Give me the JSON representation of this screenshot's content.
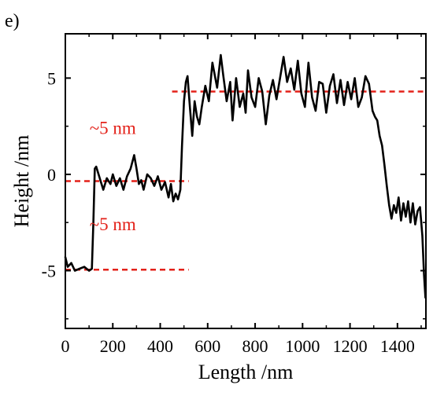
{
  "panel_label": "e)",
  "colors": {
    "profile": "#000000",
    "annotation": "#e32119"
  },
  "chart_data": {
    "type": "line",
    "title": "",
    "xlabel": "Length /nm",
    "ylabel": "Height /nm",
    "xlim": [
      0,
      1520
    ],
    "ylim": [
      -8,
      7.3
    ],
    "x_ticks": [
      0,
      200,
      400,
      600,
      800,
      1000,
      1200,
      1400
    ],
    "y_ticks": [
      -5,
      0,
      5
    ],
    "x_tick_labels": [
      "0",
      "200",
      "400",
      "600",
      "800",
      "1000",
      "1200",
      "1400"
    ],
    "y_tick_labels": [
      "-5",
      "0",
      "5"
    ],
    "grid": false,
    "series": [
      {
        "x": [
          0,
          10,
          25,
          40,
          60,
          80,
          100,
          112,
          118,
          124,
          130,
          140,
          150,
          160,
          175,
          190,
          200,
          215,
          230,
          245,
          260,
          275,
          290,
          300,
          310,
          320,
          330,
          345,
          360,
          375,
          390,
          405,
          420,
          435,
          445,
          455,
          465,
          475,
          485,
          492,
          500,
          508,
          515,
          525,
          535,
          545,
          555,
          565,
          575,
          590,
          605,
          620,
          640,
          655,
          665,
          680,
          695,
          705,
          720,
          735,
          750,
          760,
          770,
          785,
          800,
          815,
          830,
          845,
          860,
          875,
          890,
          905,
          920,
          935,
          950,
          965,
          980,
          995,
          1010,
          1025,
          1040,
          1055,
          1070,
          1085,
          1100,
          1115,
          1130,
          1145,
          1160,
          1175,
          1190,
          1205,
          1220,
          1235,
          1250,
          1265,
          1280,
          1295,
          1305,
          1315,
          1325,
          1335,
          1345,
          1355,
          1365,
          1375,
          1385,
          1395,
          1405,
          1415,
          1425,
          1435,
          1445,
          1455,
          1465,
          1475,
          1485,
          1495,
          1505,
          1512,
          1518
        ],
        "y": [
          -4.3,
          -4.8,
          -4.6,
          -5.0,
          -4.9,
          -4.8,
          -5.0,
          -4.9,
          -2.5,
          0.3,
          0.4,
          0.0,
          -0.4,
          -0.8,
          -0.2,
          -0.5,
          0.0,
          -0.6,
          -0.2,
          -0.8,
          -0.1,
          0.3,
          1.0,
          0.3,
          -0.5,
          -0.3,
          -0.8,
          0.0,
          -0.2,
          -0.6,
          -0.1,
          -0.8,
          -0.4,
          -1.2,
          -0.5,
          -1.4,
          -1.0,
          -1.3,
          -0.8,
          1.5,
          3.8,
          4.8,
          5.1,
          3.5,
          2.0,
          3.8,
          3.0,
          2.6,
          3.5,
          4.6,
          3.8,
          5.8,
          4.5,
          6.2,
          5.2,
          3.8,
          4.8,
          2.8,
          5.0,
          3.5,
          4.2,
          3.2,
          5.4,
          4.0,
          3.5,
          5.0,
          4.3,
          2.6,
          4.1,
          4.9,
          3.9,
          5.0,
          6.1,
          4.8,
          5.5,
          4.4,
          5.9,
          4.2,
          3.5,
          5.8,
          4.0,
          3.3,
          4.8,
          4.7,
          3.2,
          4.6,
          5.2,
          3.7,
          4.9,
          3.6,
          4.8,
          3.9,
          5.0,
          3.5,
          4.0,
          5.1,
          4.7,
          3.3,
          3.0,
          2.8,
          2.0,
          1.5,
          0.5,
          -0.6,
          -1.6,
          -2.3,
          -1.6,
          -2.0,
          -1.2,
          -2.4,
          -1.5,
          -2.2,
          -1.4,
          -2.5,
          -1.5,
          -2.6,
          -1.9,
          -1.7,
          -3.2,
          -5.2,
          -6.4
        ]
      }
    ],
    "reference_lines": [
      {
        "y": 4.3,
        "x": [
          450,
          1510
        ]
      },
      {
        "y": -0.35,
        "x": [
          0,
          520
        ]
      },
      {
        "y": -4.95,
        "x": [
          0,
          520
        ]
      }
    ],
    "annotations": [
      {
        "text": "~5 nm",
        "x": 200,
        "y": 2.1
      },
      {
        "text": "~5 nm",
        "x": 200,
        "y": -2.9
      }
    ]
  }
}
